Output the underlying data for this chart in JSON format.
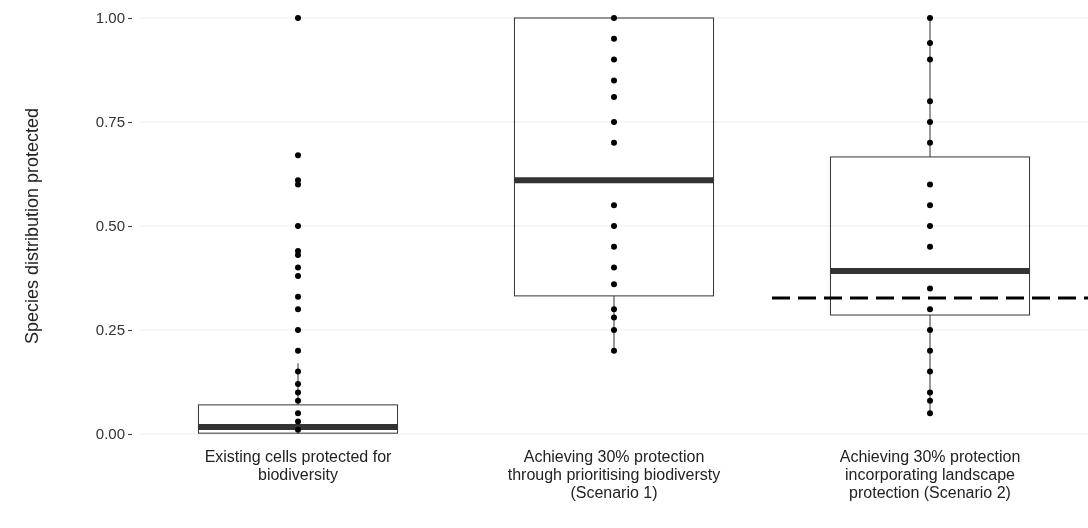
{
  "chart_data": {
    "type": "box",
    "ylabel": "Species distribution protected",
    "categories": [
      "Existing cells protected for biodiversity",
      "Achieving 30% protection through prioritising biodiversty (Scenario 1)",
      "Achieving 30% protection incorporating landscape protection (Scenario 2)"
    ],
    "ylim": [
      0,
      1
    ],
    "yticks": [
      {
        "value": 0,
        "label": "0.00"
      },
      {
        "value": 0.25,
        "label": "0.25"
      },
      {
        "value": 0.5,
        "label": "0.50"
      },
      {
        "value": 0.75,
        "label": "0.75"
      },
      {
        "value": 1,
        "label": "1.00"
      }
    ],
    "grid": "y",
    "boxes": [
      {
        "low": 0,
        "q1": 0.002,
        "median": 0.017,
        "q3": 0.07,
        "high": 0.17
      },
      {
        "low": 0.195,
        "q1": 0.332,
        "median": 0.61,
        "q3": 1,
        "high": 1
      },
      {
        "low": 0.043,
        "q1": 0.286,
        "median": 0.392,
        "q3": 0.666,
        "high": 1
      }
    ],
    "series": [
      {
        "type": "scatter",
        "color": "#000000",
        "marker": "circle",
        "x": [
          "Existing cells protected for biodiversity",
          "Existing cells protected for biodiversity",
          "Existing cells protected for biodiversity",
          "Existing cells protected for biodiversity",
          "Existing cells protected for biodiversity",
          "Existing cells protected for biodiversity",
          "Existing cells protected for biodiversity",
          "Existing cells protected for biodiversity",
          "Existing cells protected for biodiversity",
          "Existing cells protected for biodiversity",
          "Existing cells protected for biodiversity",
          "Existing cells protected for biodiversity",
          "Existing cells protected for biodiversity",
          "Existing cells protected for biodiversity",
          "Existing cells protected for biodiversity",
          "Existing cells protected for biodiversity",
          "Existing cells protected for biodiversity",
          "Existing cells protected for biodiversity",
          "Existing cells protected for biodiversity",
          "Existing cells protected for biodiversity",
          "Achieving 30% protection through prioritising biodiversty (Scenario 1)",
          "Achieving 30% protection through prioritising biodiversty (Scenario 1)",
          "Achieving 30% protection through prioritising biodiversty (Scenario 1)",
          "Achieving 30% protection through prioritising biodiversty (Scenario 1)",
          "Achieving 30% protection through prioritising biodiversty (Scenario 1)",
          "Achieving 30% protection through prioritising biodiversty (Scenario 1)",
          "Achieving 30% protection through prioritising biodiversty (Scenario 1)",
          "Achieving 30% protection through prioritising biodiversty (Scenario 1)",
          "Achieving 30% protection through prioritising biodiversty (Scenario 1)",
          "Achieving 30% protection through prioritising biodiversty (Scenario 1)",
          "Achieving 30% protection through prioritising biodiversty (Scenario 1)",
          "Achieving 30% protection through prioritising biodiversty (Scenario 1)",
          "Achieving 30% protection through prioritising biodiversty (Scenario 1)",
          "Achieving 30% protection through prioritising biodiversty (Scenario 1)",
          "Achieving 30% protection through prioritising biodiversty (Scenario 1)",
          "Achieving 30% protection through prioritising biodiversty (Scenario 1)",
          "Achieving 30% protection incorporating landscape protection (Scenario 2)",
          "Achieving 30% protection incorporating landscape protection (Scenario 2)",
          "Achieving 30% protection incorporating landscape protection (Scenario 2)",
          "Achieving 30% protection incorporating landscape protection (Scenario 2)",
          "Achieving 30% protection incorporating landscape protection (Scenario 2)",
          "Achieving 30% protection incorporating landscape protection (Scenario 2)",
          "Achieving 30% protection incorporating landscape protection (Scenario 2)",
          "Achieving 30% protection incorporating landscape protection (Scenario 2)",
          "Achieving 30% protection incorporating landscape protection (Scenario 2)",
          "Achieving 30% protection incorporating landscape protection (Scenario 2)",
          "Achieving 30% protection incorporating landscape protection (Scenario 2)",
          "Achieving 30% protection incorporating landscape protection (Scenario 2)",
          "Achieving 30% protection incorporating landscape protection (Scenario 2)",
          "Achieving 30% protection incorporating landscape protection (Scenario 2)",
          "Achieving 30% protection incorporating landscape protection (Scenario 2)",
          "Achieving 30% protection incorporating landscape protection (Scenario 2)",
          "Achieving 30% protection incorporating landscape protection (Scenario 2)",
          "Achieving 30% protection incorporating landscape protection (Scenario 2)"
        ],
        "values": [
          1,
          0.67,
          0.61,
          0.6,
          0.5,
          0.44,
          0.43,
          0.4,
          0.38,
          0.33,
          0.3,
          0.25,
          0.2,
          0.15,
          0.12,
          0.1,
          0.08,
          0.05,
          0.03,
          0.01,
          1,
          0.95,
          0.9,
          0.85,
          0.81,
          0.75,
          0.7,
          0.55,
          0.5,
          0.45,
          0.4,
          0.36,
          0.3,
          0.28,
          0.25,
          0.2,
          1,
          0.94,
          0.9,
          0.8,
          0.75,
          0.7,
          0.6,
          0.55,
          0.5,
          0.45,
          0.35,
          0.3,
          0.25,
          0.2,
          0.15,
          0.1,
          0.08,
          0.05
        ]
      }
    ],
    "ref_lines": [
      {
        "axis": "y",
        "value": 0.327,
        "line_style": "dashed",
        "color": "#000000"
      }
    ]
  }
}
